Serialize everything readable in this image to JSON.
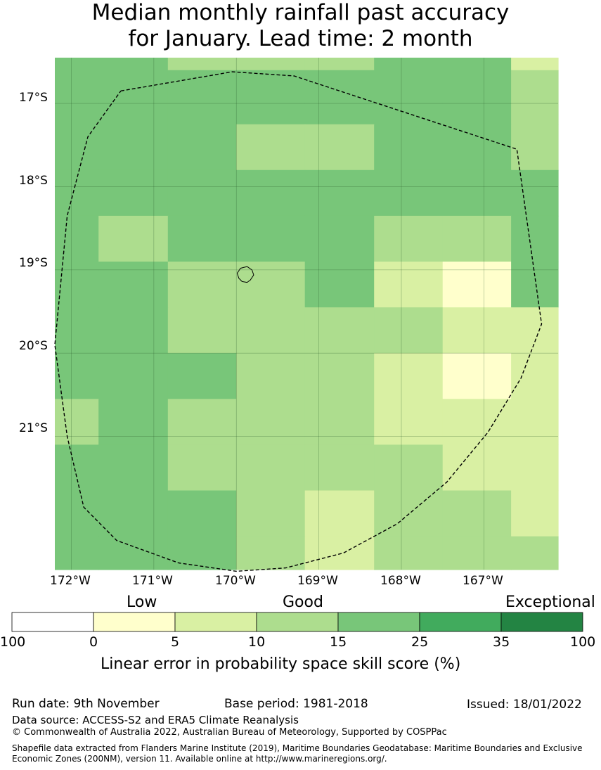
{
  "title": {
    "line1": "Median monthly rainfall past accuracy",
    "line2": "for January. Lead time: 2 month"
  },
  "axes": {
    "lat_labels": [
      "17°S",
      "18°S",
      "19°S",
      "20°S",
      "21°S"
    ],
    "lon_labels": [
      "172°W",
      "171°W",
      "170°W",
      "169°W",
      "168°W",
      "167°W"
    ]
  },
  "map": {
    "lon_range": [
      -172.2,
      -166.1
    ],
    "lat_range": [
      -22.6,
      -16.45
    ],
    "grid_lons": [
      -172,
      -171,
      -170,
      -169,
      -168,
      -167
    ],
    "grid_lats": [
      -17,
      -18,
      -19,
      -20,
      -21
    ],
    "cell_lons": [
      -172.2,
      -171.67,
      -170.83,
      -170,
      -169.17,
      -168.33,
      -167.5,
      -166.67,
      -166.1
    ],
    "cell_lats": [
      -16.45,
      -16.6,
      -17.25,
      -17.8,
      -18.35,
      -18.9,
      -19.45,
      -20.0,
      -20.55,
      -21.1,
      -21.65,
      -22.2,
      -22.6
    ],
    "rows_top_to_bottom": [
      [
        3,
        3,
        2,
        2,
        2,
        3,
        3,
        1
      ],
      [
        3,
        3,
        3,
        3,
        3,
        3,
        3,
        2
      ],
      [
        3,
        3,
        3,
        2,
        2,
        3,
        3,
        2
      ],
      [
        3,
        3,
        3,
        3,
        3,
        3,
        3,
        3
      ],
      [
        3,
        2,
        3,
        3,
        3,
        2,
        2,
        3
      ],
      [
        3,
        3,
        2,
        2,
        3,
        1,
        0,
        3
      ],
      [
        3,
        3,
        2,
        2,
        2,
        2,
        1,
        1
      ],
      [
        3,
        3,
        3,
        2,
        2,
        1,
        0,
        1
      ],
      [
        2,
        3,
        2,
        2,
        2,
        1,
        1,
        1
      ],
      [
        3,
        3,
        2,
        2,
        2,
        2,
        1,
        1
      ],
      [
        3,
        3,
        3,
        2,
        1,
        2,
        2,
        1
      ],
      [
        3,
        3,
        3,
        2,
        1,
        2,
        2,
        2
      ]
    ],
    "eez_boundary": [
      [
        -171.4,
        -16.85
      ],
      [
        -170.05,
        -16.62
      ],
      [
        -169.3,
        -16.67
      ],
      [
        -166.6,
        -17.55
      ],
      [
        -166.3,
        -19.65
      ],
      [
        -166.55,
        -20.3
      ],
      [
        -166.95,
        -20.95
      ],
      [
        -167.45,
        -21.55
      ],
      [
        -168.05,
        -22.05
      ],
      [
        -168.7,
        -22.4
      ],
      [
        -169.4,
        -22.58
      ],
      [
        -170.0,
        -22.62
      ],
      [
        -170.7,
        -22.52
      ],
      [
        -171.45,
        -22.25
      ],
      [
        -171.85,
        -21.85
      ],
      [
        -172.05,
        -21.0
      ],
      [
        -172.2,
        -19.9
      ],
      [
        -172.05,
        -18.35
      ],
      [
        -171.8,
        -17.4
      ],
      [
        -171.4,
        -16.85
      ]
    ],
    "island": [
      [
        -169.95,
        -18.98
      ],
      [
        -169.87,
        -18.96
      ],
      [
        -169.81,
        -19.0
      ],
      [
        -169.79,
        -19.06
      ],
      [
        -169.83,
        -19.12
      ],
      [
        -169.87,
        -19.15
      ],
      [
        -169.93,
        -19.14
      ],
      [
        -169.97,
        -19.1
      ],
      [
        -169.99,
        -19.04
      ],
      [
        -169.95,
        -18.98
      ]
    ]
  },
  "legend": {
    "categories": [
      {
        "label": "Low",
        "center_value": "5"
      },
      {
        "label": "Good",
        "center_value": "15"
      },
      {
        "label": "Exceptional",
        "center_value": "35"
      }
    ],
    "tick_labels": [
      "100",
      "0",
      "5",
      "10",
      "15",
      "25",
      "35",
      "100"
    ],
    "colors": [
      "#ffffff",
      "#ffffcc",
      "#d9f0a3",
      "#addd8e",
      "#78c679",
      "#41ab5d",
      "#238443"
    ],
    "title": "Linear error in probability space skill score (%)"
  },
  "footer": {
    "run_date": "Run date: 9th November",
    "base_period": "Base period: 1981-2018",
    "issued": "Issued: 18/01/2022",
    "data_source": "Data source: ACCESS-S2 and ERA5 Climate Reanalysis",
    "copyright": "© Commonwealth of Australia 2022, Australian Bureau of Meteorology, Supported by COSPPac",
    "shapefile_line1": "Shapefile data extracted from Flanders Marine Institute (2019), Maritime Boundaries Geodatabase: Maritime Boundaries and Exclusive",
    "shapefile_line2": "Economic Zones (200NM), version 11. Available online at http://www.marineregions.org/."
  }
}
